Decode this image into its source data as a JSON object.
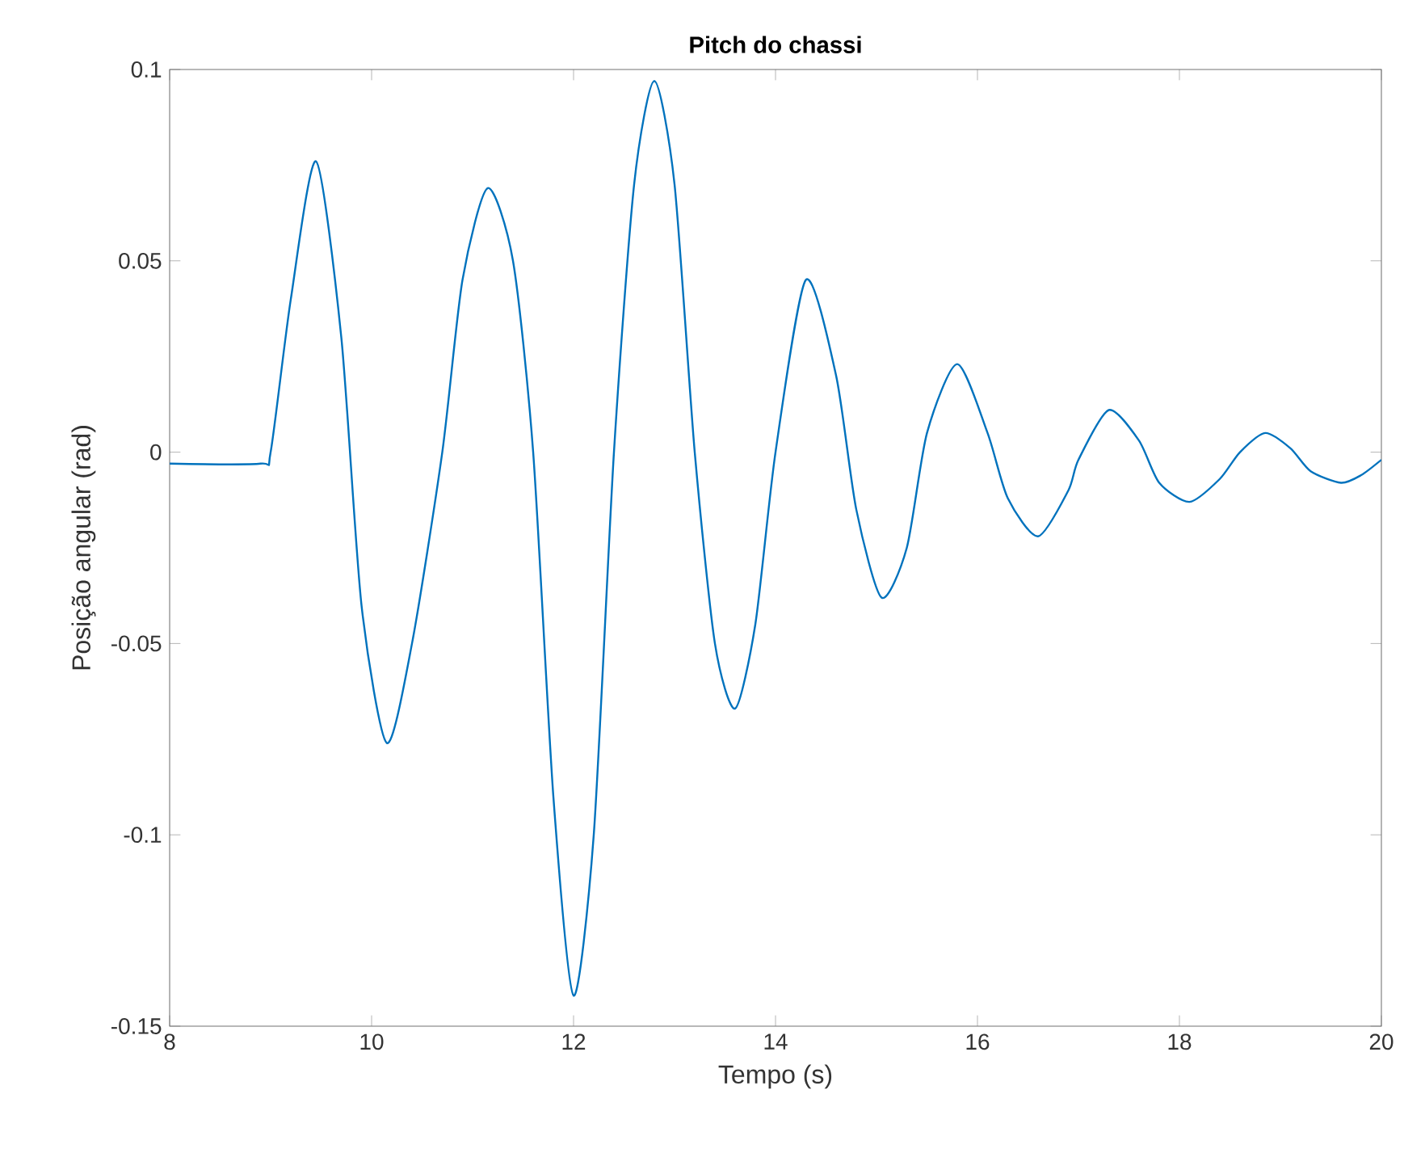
{
  "chart_data": {
    "type": "line",
    "title": "Pitch do chassi",
    "xlabel": "Tempo (s)",
    "ylabel": "Posição angular (rad)",
    "xlim": [
      8,
      20
    ],
    "ylim": [
      -0.15,
      0.1
    ],
    "xticks": [
      8,
      10,
      12,
      14,
      16,
      18,
      20
    ],
    "yticks": [
      -0.15,
      -0.1,
      -0.05,
      0,
      0.05,
      0.1
    ],
    "marker": "none",
    "line_style": "solid",
    "series": [
      {
        "color": "#0072bd",
        "x": [
          8,
          8.9,
          9.0,
          9.2,
          9.45,
          9.7,
          9.9,
          10.15,
          10.4,
          10.7,
          10.9,
          11.15,
          11.4,
          11.6,
          11.8,
          12.0,
          12.2,
          12.4,
          12.6,
          12.8,
          13.0,
          13.2,
          13.4,
          13.6,
          13.8,
          14.0,
          14.3,
          14.6,
          14.8,
          15.05,
          15.3,
          15.5,
          15.8,
          16.1,
          16.3,
          16.6,
          16.9,
          17.0,
          17.3,
          17.6,
          17.8,
          18.1,
          18.4,
          18.6,
          18.85,
          19.1,
          19.3,
          19.6,
          19.8,
          20
        ],
        "values": [
          -0.003,
          -0.003,
          0.0,
          0.04,
          0.076,
          0.03,
          -0.04,
          -0.076,
          -0.05,
          0.0,
          0.045,
          0.069,
          0.05,
          0.0,
          -0.09,
          -0.142,
          -0.1,
          0.0,
          0.07,
          0.097,
          0.07,
          0.0,
          -0.05,
          -0.067,
          -0.045,
          0.0,
          0.045,
          0.02,
          -0.015,
          -0.038,
          -0.025,
          0.005,
          0.023,
          0.005,
          -0.012,
          -0.022,
          -0.01,
          -0.002,
          0.011,
          0.003,
          -0.008,
          -0.013,
          -0.007,
          0.0,
          0.005,
          0.001,
          -0.005,
          -0.008,
          -0.006,
          -0.002
        ]
      }
    ]
  }
}
